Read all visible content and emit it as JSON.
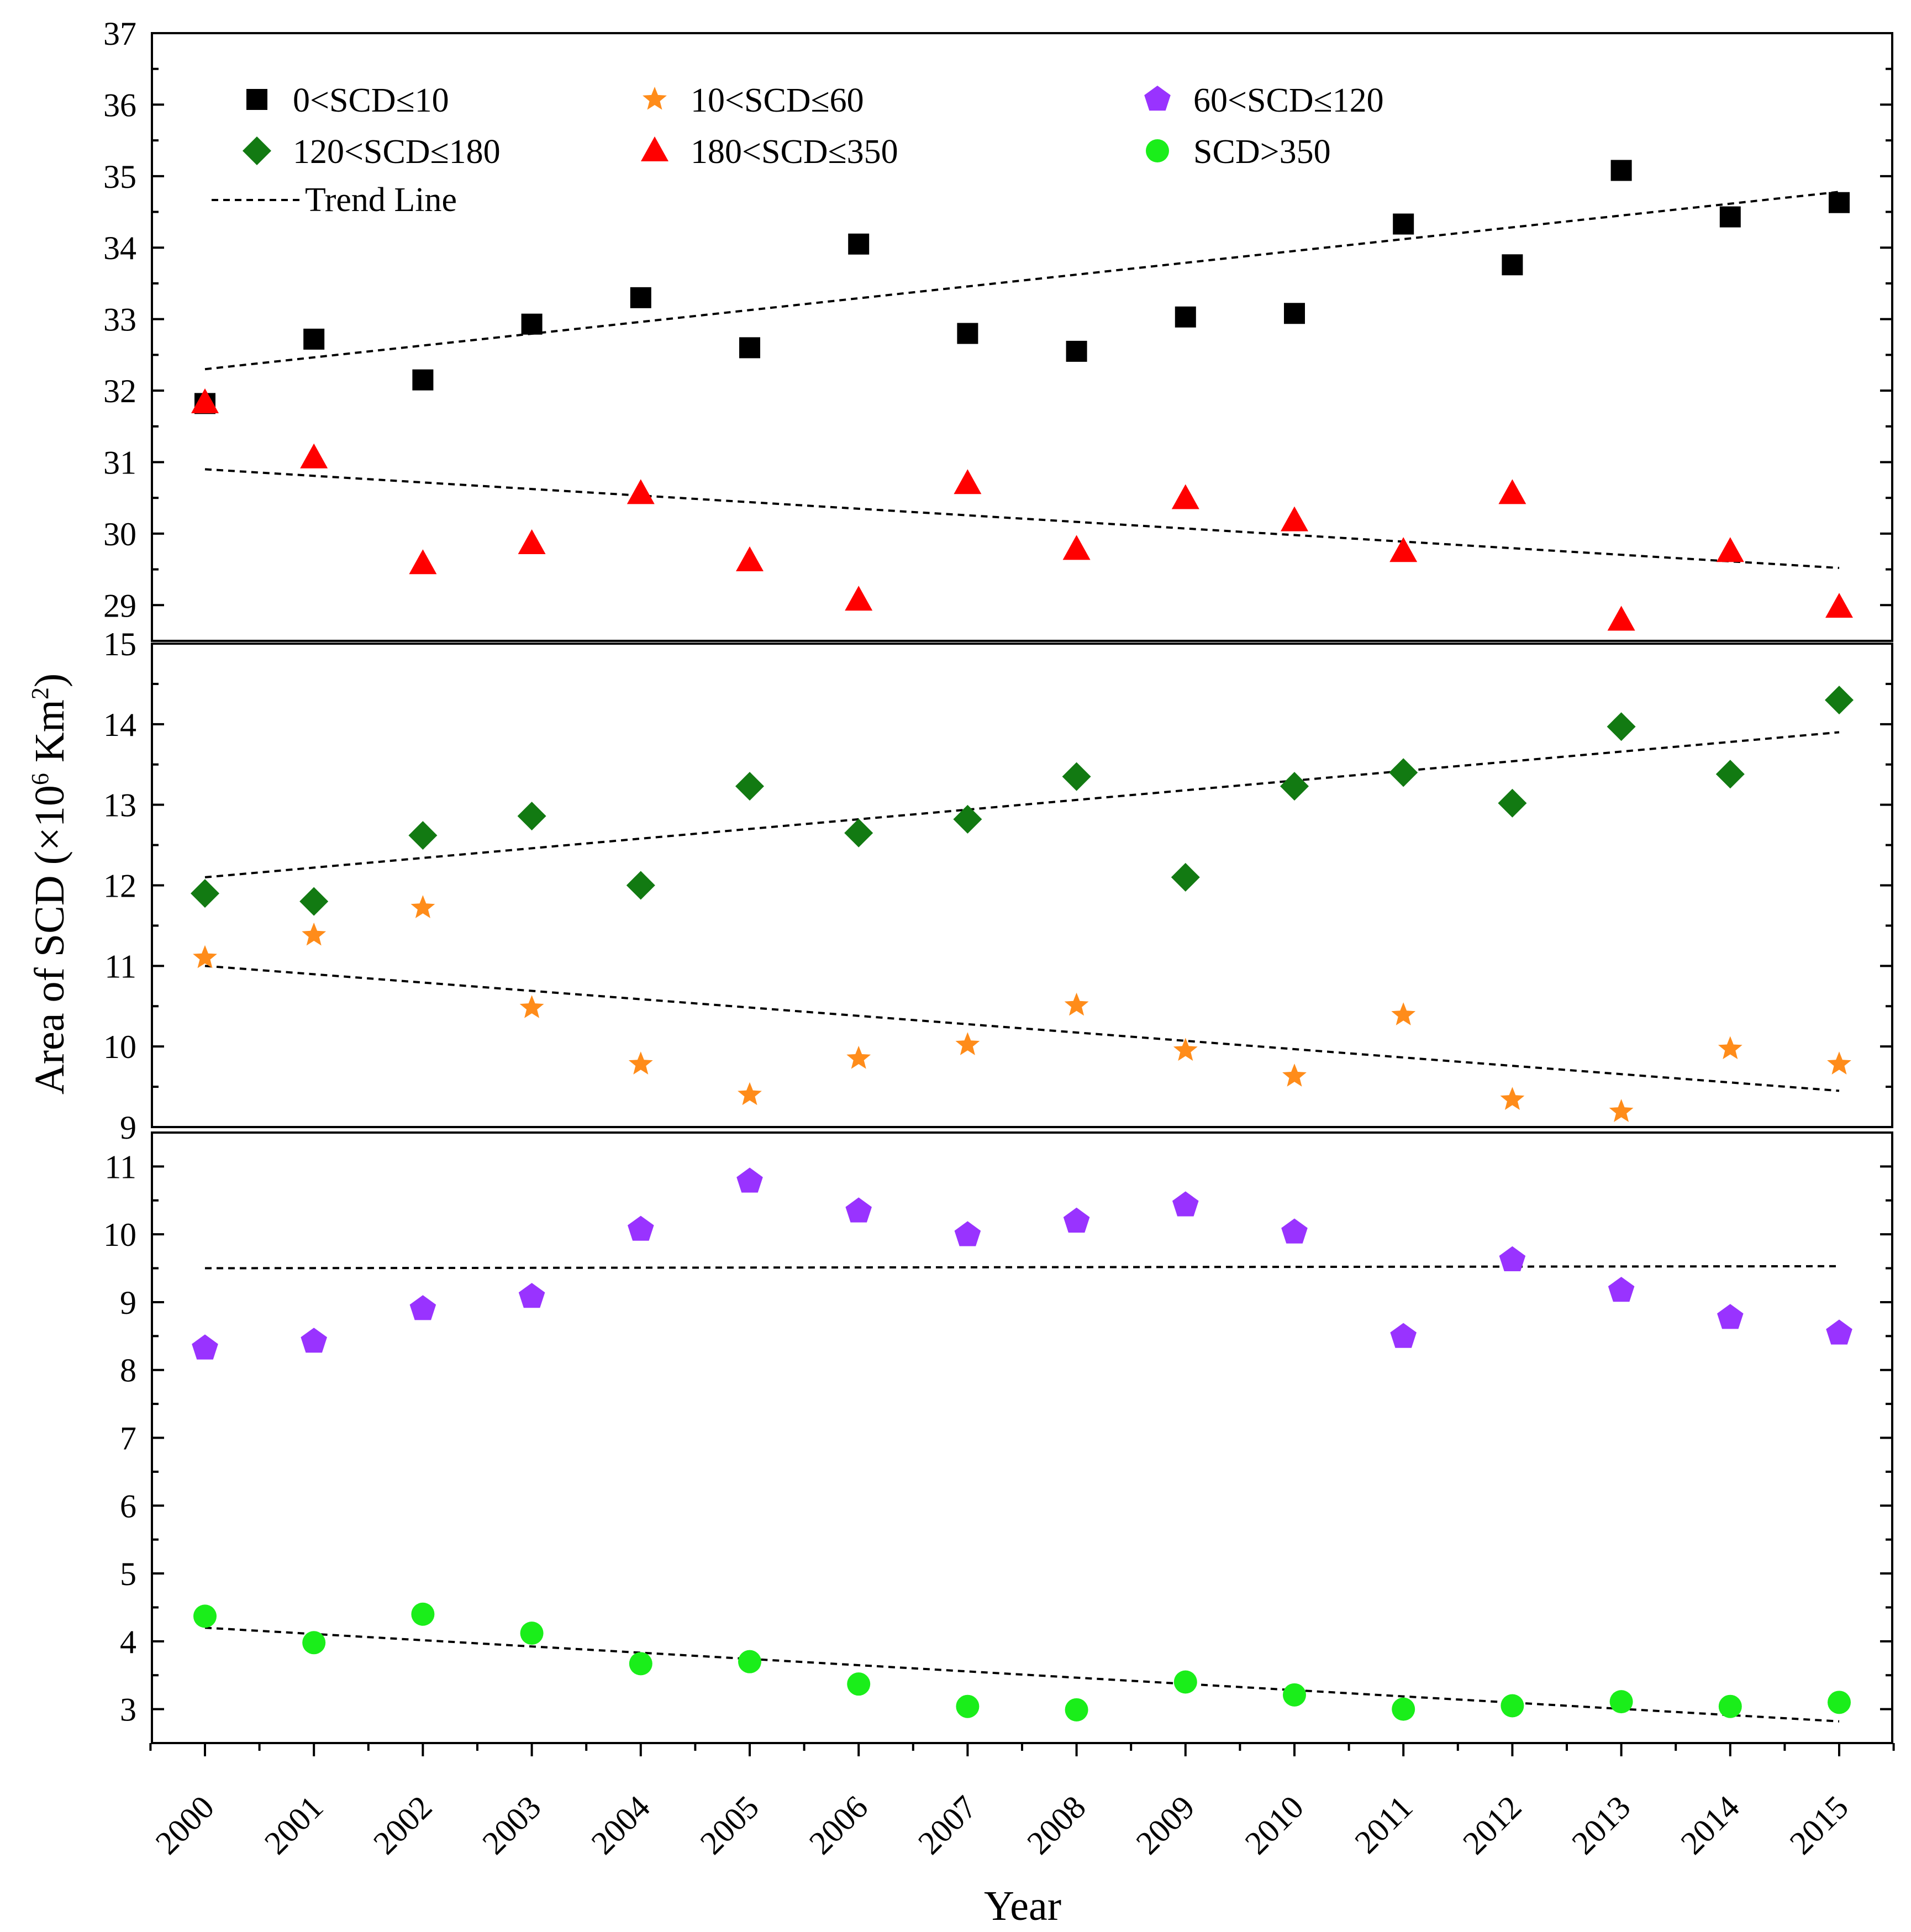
{
  "chart_data": {
    "type": "scatter",
    "title": "",
    "xlabel": "Year",
    "ylabel": "Area of SCD (×10",
    "ylabel_sup_exp": "6",
    "ylabel_unit": " Km",
    "ylabel_sup_sq": "2",
    "ylabel_close": ")",
    "x": [
      2000,
      2001,
      2002,
      2003,
      2004,
      2005,
      2006,
      2007,
      2008,
      2009,
      2010,
      2011,
      2012,
      2013,
      2014,
      2015
    ],
    "x_tick_labels": [
      "2000",
      "2001",
      "2002",
      "2003",
      "2004",
      "2005",
      "2006",
      "2007",
      "2008",
      "2009",
      "2010",
      "2011",
      "2012",
      "2013",
      "2014",
      "2015"
    ],
    "panels": [
      {
        "id": "top",
        "ylim": [
          28.5,
          37
        ],
        "yticks": [
          29,
          30,
          31,
          32,
          33,
          34,
          35,
          36,
          37
        ],
        "series_keys": [
          "s1",
          "s5"
        ],
        "trends": [
          {
            "series": "s1",
            "start": 32.3,
            "end": 34.78
          },
          {
            "series": "s5",
            "start": 30.9,
            "end": 29.52
          }
        ]
      },
      {
        "id": "middle",
        "ylim": [
          9,
          15
        ],
        "yticks": [
          9,
          10,
          11,
          12,
          13,
          14,
          15
        ],
        "series_keys": [
          "s4",
          "s2"
        ],
        "trends": [
          {
            "series": "s4",
            "start": 12.1,
            "end": 13.9
          },
          {
            "series": "s2",
            "start": 11.0,
            "end": 9.45
          }
        ]
      },
      {
        "id": "bottom",
        "ylim": [
          2.5,
          11.5
        ],
        "yticks": [
          3,
          4,
          5,
          6,
          7,
          8,
          9,
          10,
          11
        ],
        "series_keys": [
          "s3",
          "s6"
        ],
        "trends": [
          {
            "series": "s3",
            "start": 9.5,
            "end": 9.53
          },
          {
            "series": "s6",
            "start": 4.2,
            "end": 2.82
          }
        ]
      }
    ],
    "series": [
      {
        "key": "s1",
        "name": "0<SCD≤10",
        "marker": "square",
        "color": "#000000",
        "values": [
          31.82,
          32.72,
          32.15,
          32.93,
          33.3,
          32.6,
          34.05,
          32.8,
          32.55,
          33.03,
          33.08,
          34.33,
          33.76,
          35.08,
          34.43,
          34.63
        ]
      },
      {
        "key": "s2",
        "name": "10<SCD≤60",
        "marker": "star",
        "color": "#ff8c1a",
        "values": [
          11.1,
          11.38,
          11.72,
          10.48,
          9.78,
          9.4,
          9.85,
          10.02,
          10.51,
          9.95,
          9.63,
          10.39,
          9.34,
          9.19,
          9.97,
          9.78
        ]
      },
      {
        "key": "s3",
        "name": "60<SCD≤120",
        "marker": "pentagon",
        "color": "#9933ff",
        "values": [
          8.32,
          8.42,
          8.9,
          9.08,
          10.07,
          10.78,
          10.34,
          9.99,
          10.19,
          10.43,
          10.03,
          8.49,
          9.62,
          9.17,
          8.77,
          8.54
        ]
      },
      {
        "key": "s4",
        "name": "120<SCD≤180",
        "marker": "diamond",
        "color": "#127a12",
        "values": [
          11.9,
          11.8,
          12.62,
          12.86,
          12.0,
          13.23,
          12.65,
          12.82,
          13.35,
          12.1,
          13.23,
          13.4,
          13.02,
          13.97,
          13.38,
          14.3
        ]
      },
      {
        "key": "s5",
        "name": "180<SCD≤350",
        "marker": "triangle",
        "color": "#ff0000",
        "values": [
          31.83,
          31.06,
          29.58,
          29.86,
          30.56,
          29.62,
          29.07,
          30.7,
          29.78,
          30.49,
          30.18,
          29.75,
          30.56,
          28.79,
          29.75,
          28.97
        ]
      },
      {
        "key": "s6",
        "name": "SCD>350",
        "marker": "circle",
        "color": "#1aee1a",
        "values": [
          4.37,
          3.98,
          4.4,
          4.12,
          3.67,
          3.7,
          3.37,
          3.04,
          2.99,
          3.4,
          3.21,
          3.0,
          3.05,
          3.11,
          3.04,
          3.1
        ]
      }
    ],
    "legend": {
      "placement": "top-left",
      "entries": [
        {
          "series": "s1",
          "label": "0<SCD≤10"
        },
        {
          "series": "s2",
          "label": "10<SCD≤60"
        },
        {
          "series": "s3",
          "label": "60<SCD≤120"
        },
        {
          "series": "s4",
          "label": "120<SCD≤180"
        },
        {
          "series": "s5",
          "label": "180<SCD≤350"
        },
        {
          "series": "s6",
          "label": "SCD>350"
        }
      ],
      "trend_label": "Trend Line"
    },
    "grid": false
  }
}
